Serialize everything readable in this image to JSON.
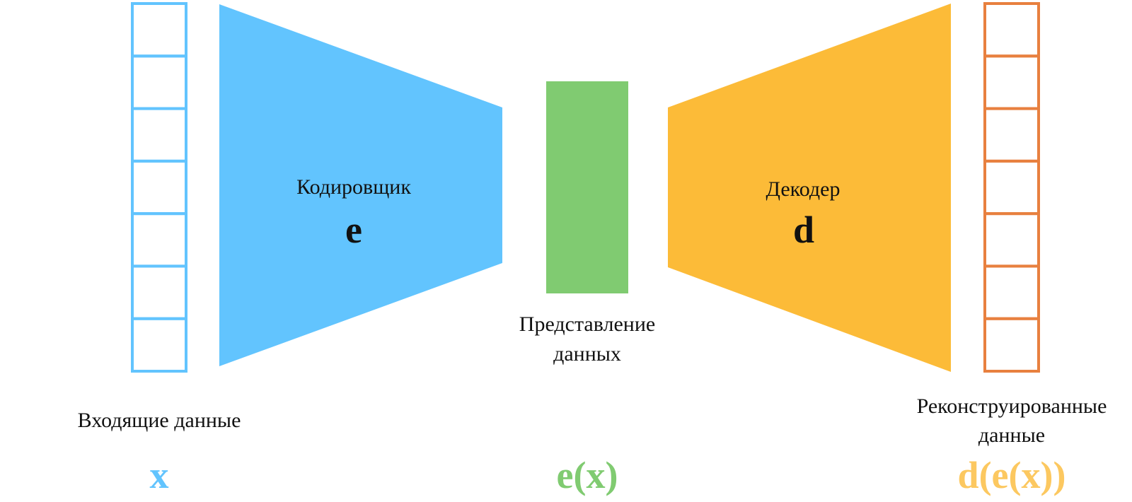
{
  "colors": {
    "input": "#62c4fe",
    "encoder": "#62c4fe",
    "latent": "#80cb71",
    "decoder": "#fcbb38",
    "output": "#e8803f",
    "output_formula": "#fcc860",
    "text": "#111111"
  },
  "input": {
    "cells": 7,
    "label": "Входящие данные",
    "formula": "x"
  },
  "encoder": {
    "label": "Кодировщик",
    "symbol": "e"
  },
  "latent": {
    "label_line1": "Представление",
    "label_line2": "данных",
    "formula": "e(x)"
  },
  "decoder": {
    "label": "Декодер",
    "symbol": "d"
  },
  "output": {
    "cells": 7,
    "label_line1": "Реконструированные",
    "label_line2": "данные",
    "formula": "d(e(x))"
  }
}
